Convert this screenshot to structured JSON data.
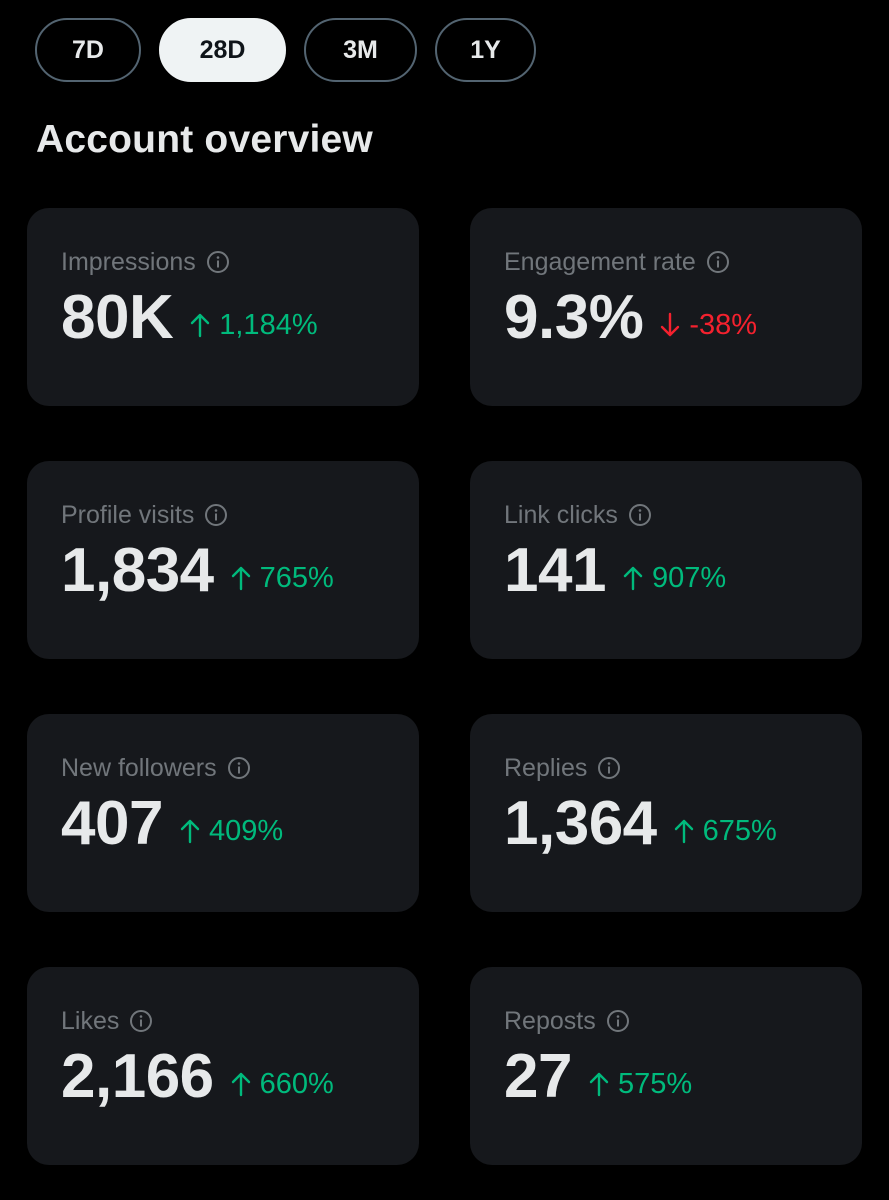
{
  "range_tabs": [
    {
      "label": "7D",
      "active": false
    },
    {
      "label": "28D",
      "active": true
    },
    {
      "label": "3M",
      "active": false
    },
    {
      "label": "1Y",
      "active": false
    }
  ],
  "section_title": "Account overview",
  "colors": {
    "positive": "#00ba7c",
    "negative": "#f4212e",
    "card_bg": "#16181c",
    "label": "#71767b"
  },
  "metrics": [
    {
      "label": "Impressions",
      "value": "80K",
      "change": "1,184%",
      "direction": "up",
      "icon": "info-icon"
    },
    {
      "label": "Engagement rate",
      "value": "9.3%",
      "change": "-38%",
      "direction": "down",
      "icon": "info-icon"
    },
    {
      "label": "Profile visits",
      "value": "1,834",
      "change": "765%",
      "direction": "up",
      "icon": "info-icon"
    },
    {
      "label": "Link clicks",
      "value": "141",
      "change": "907%",
      "direction": "up",
      "icon": "info-icon"
    },
    {
      "label": "New followers",
      "value": "407",
      "change": "409%",
      "direction": "up",
      "icon": "info-icon"
    },
    {
      "label": "Replies",
      "value": "1,364",
      "change": "675%",
      "direction": "up",
      "icon": "info-icon"
    },
    {
      "label": "Likes",
      "value": "2,166",
      "change": "660%",
      "direction": "up",
      "icon": "info-icon"
    },
    {
      "label": "Reposts",
      "value": "27",
      "change": "575%",
      "direction": "up",
      "icon": "info-icon"
    }
  ]
}
